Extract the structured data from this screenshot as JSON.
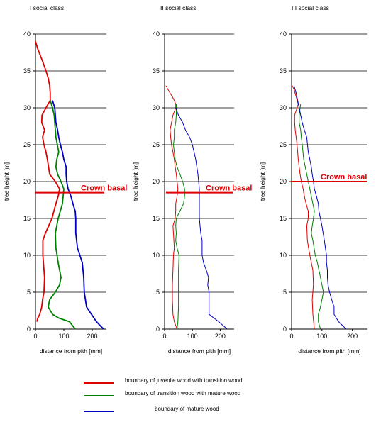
{
  "chart_data": [
    {
      "type": "line",
      "title": "I social class",
      "xlabel": "distance from pith [mm]",
      "ylabel": "tree height [m]",
      "xlim": [
        0,
        250
      ],
      "ylim": [
        0,
        40
      ],
      "xticks": [
        0,
        100,
        200
      ],
      "yticks": [
        0,
        5,
        10,
        15,
        20,
        25,
        30,
        35,
        40
      ],
      "grid": "horizontal",
      "annotation": {
        "text": "Crown basal",
        "y": 18.5
      },
      "series": [
        {
          "name": "boundary of juvenile wood with transition wood",
          "color": "#e00000",
          "points": [
            [
              5,
              1
            ],
            [
              8,
              1.5
            ],
            [
              15,
              2
            ],
            [
              22,
              3
            ],
            [
              25,
              4
            ],
            [
              30,
              5
            ],
            [
              32,
              7
            ],
            [
              26,
              10
            ],
            [
              26,
              12
            ],
            [
              35,
              13
            ],
            [
              58,
              15
            ],
            [
              72,
              17
            ],
            [
              80,
              18
            ],
            [
              85,
              19
            ],
            [
              70,
              20
            ],
            [
              50,
              21
            ],
            [
              42,
              23
            ],
            [
              37,
              24
            ],
            [
              30,
              25
            ],
            [
              25,
              26
            ],
            [
              32,
              27
            ],
            [
              22,
              28
            ],
            [
              23,
              29
            ],
            [
              37,
              30
            ],
            [
              52,
              31
            ],
            [
              52,
              32
            ],
            [
              50,
              33
            ],
            [
              45,
              34
            ],
            [
              37,
              35
            ],
            [
              28,
              36
            ],
            [
              18,
              37
            ],
            [
              8,
              38
            ],
            [
              0,
              39
            ]
          ]
        },
        {
          "name": "boundary of transition wood with mature wood",
          "color": "#008000",
          "points": [
            [
              140,
              0
            ],
            [
              120,
              1
            ],
            [
              82,
              1.5
            ],
            [
              60,
              2
            ],
            [
              45,
              3
            ],
            [
              50,
              4
            ],
            [
              70,
              5
            ],
            [
              85,
              6
            ],
            [
              90,
              7
            ],
            [
              80,
              9
            ],
            [
              72,
              11
            ],
            [
              70,
              13
            ],
            [
              80,
              15
            ],
            [
              95,
              17
            ],
            [
              100,
              19
            ],
            [
              90,
              20
            ],
            [
              78,
              21
            ],
            [
              72,
              22
            ],
            [
              75,
              23
            ],
            [
              82,
              24
            ],
            [
              77,
              25
            ],
            [
              72,
              26
            ],
            [
              70,
              27
            ],
            [
              68,
              28
            ],
            [
              66,
              29
            ],
            [
              60,
              30
            ],
            [
              52,
              31
            ]
          ]
        },
        {
          "name": "boundary of mature wood",
          "color": "#0000c0",
          "points": [
            [
              240,
              0
            ],
            [
              215,
              1
            ],
            [
              180,
              3
            ],
            [
              172,
              5
            ],
            [
              170,
              7
            ],
            [
              165,
              9
            ],
            [
              148,
              11
            ],
            [
              142,
              13
            ],
            [
              142,
              15
            ],
            [
              140,
              16
            ],
            [
              132,
              17
            ],
            [
              125,
              18
            ],
            [
              115,
              19
            ],
            [
              110,
              20
            ],
            [
              108,
              21
            ],
            [
              108,
              22
            ],
            [
              100,
              23
            ],
            [
              95,
              24
            ],
            [
              88,
              25
            ],
            [
              82,
              26
            ],
            [
              78,
              27
            ],
            [
              72,
              28
            ],
            [
              70,
              29
            ],
            [
              68,
              30
            ],
            [
              60,
              31
            ]
          ]
        }
      ]
    },
    {
      "type": "line",
      "title": "II social class",
      "xlabel": "distance from pith [mm]",
      "ylabel": "tree height [m]",
      "xlim": [
        0,
        250
      ],
      "ylim": [
        0,
        40
      ],
      "xticks": [
        0,
        100,
        200
      ],
      "yticks": [
        0,
        5,
        10,
        15,
        20,
        25,
        30,
        35,
        40
      ],
      "grid": "horizontal",
      "annotation": {
        "text": "Crown basal",
        "y": 18.5
      },
      "series": [
        {
          "name": "boundary of juvenile wood with transition wood",
          "color": "#e00000",
          "points": [
            [
              45,
              0
            ],
            [
              35,
              1
            ],
            [
              30,
              2
            ],
            [
              28,
              4
            ],
            [
              28,
              6
            ],
            [
              30,
              8
            ],
            [
              32,
              10
            ],
            [
              35,
              11
            ],
            [
              32,
              13
            ],
            [
              30,
              14
            ],
            [
              38,
              15
            ],
            [
              40,
              16
            ],
            [
              40,
              17
            ],
            [
              45,
              18
            ],
            [
              48,
              19
            ],
            [
              45,
              20
            ],
            [
              42,
              21
            ],
            [
              38,
              22
            ],
            [
              35,
              23
            ],
            [
              30,
              24
            ],
            [
              25,
              25
            ],
            [
              22,
              26
            ],
            [
              20,
              27
            ],
            [
              25,
              28
            ],
            [
              30,
              29
            ],
            [
              35,
              29.5
            ],
            [
              40,
              30
            ],
            [
              40,
              30.5
            ],
            [
              35,
              31
            ],
            [
              28,
              31.5
            ],
            [
              20,
              32
            ],
            [
              12,
              32.5
            ],
            [
              5,
              33
            ]
          ]
        },
        {
          "name": "boundary of transition wood with mature wood",
          "color": "#008000",
          "points": [
            [
              45,
              0
            ],
            [
              48,
              1
            ],
            [
              50,
              3
            ],
            [
              50,
              6
            ],
            [
              50,
              8
            ],
            [
              52,
              10
            ],
            [
              45,
              11
            ],
            [
              40,
              12
            ],
            [
              42,
              13
            ],
            [
              40,
              14
            ],
            [
              42,
              15
            ],
            [
              55,
              16
            ],
            [
              68,
              17
            ],
            [
              72,
              18
            ],
            [
              72,
              19
            ],
            [
              65,
              20
            ],
            [
              55,
              21
            ],
            [
              45,
              22
            ],
            [
              38,
              23
            ],
            [
              35,
              24
            ],
            [
              32,
              25
            ],
            [
              35,
              26
            ],
            [
              35,
              27
            ],
            [
              40,
              28
            ],
            [
              42,
              29
            ],
            [
              42,
              30
            ],
            [
              42,
              30.5
            ]
          ]
        },
        {
          "name": "boundary of mature wood",
          "color": "#0000c0",
          "points": [
            [
              225,
              0
            ],
            [
              195,
              1
            ],
            [
              160,
              2
            ],
            [
              160,
              3
            ],
            [
              160,
              5
            ],
            [
              155,
              6
            ],
            [
              158,
              7
            ],
            [
              150,
              8
            ],
            [
              140,
              9
            ],
            [
              135,
              10
            ],
            [
              135,
              12
            ],
            [
              130,
              13
            ],
            [
              125,
              15
            ],
            [
              125,
              17
            ],
            [
              125,
              19
            ],
            [
              120,
              21
            ],
            [
              112,
              23
            ],
            [
              100,
              25
            ],
            [
              90,
              26
            ],
            [
              75,
              27
            ],
            [
              65,
              28
            ],
            [
              50,
              29
            ],
            [
              45,
              29.5
            ],
            [
              42,
              30
            ]
          ]
        }
      ]
    },
    {
      "type": "line",
      "title": "III social class",
      "xlabel": "distance from pith [mm]",
      "ylabel": "tree height [m]",
      "xlim": [
        0,
        250
      ],
      "ylim": [
        0,
        40
      ],
      "xticks": [
        0,
        100,
        200
      ],
      "yticks": [
        0,
        5,
        10,
        15,
        20,
        25,
        30,
        35,
        40
      ],
      "grid": "horizontal",
      "annotation": {
        "text": "Crown basal",
        "y": 20
      },
      "series": [
        {
          "name": "boundary of juvenile wood with transition wood",
          "color": "#e00000",
          "points": [
            [
              75,
              0
            ],
            [
              70,
              2
            ],
            [
              68,
              4
            ],
            [
              72,
              6
            ],
            [
              70,
              8
            ],
            [
              60,
              10
            ],
            [
              52,
              12
            ],
            [
              50,
              14
            ],
            [
              55,
              15
            ],
            [
              55,
              16
            ],
            [
              48,
              17
            ],
            [
              42,
              18
            ],
            [
              38,
              19
            ],
            [
              32,
              20
            ],
            [
              28,
              21
            ],
            [
              25,
              22
            ],
            [
              22,
              23
            ],
            [
              20,
              24
            ],
            [
              18,
              25
            ],
            [
              15,
              26
            ],
            [
              12,
              27
            ],
            [
              10,
              28
            ],
            [
              10,
              29
            ],
            [
              18,
              30
            ],
            [
              22,
              30.5
            ],
            [
              15,
              31.5
            ],
            [
              8,
              32.5
            ],
            [
              2,
              33
            ]
          ]
        },
        {
          "name": "boundary of transition wood with mature wood",
          "color": "#008000",
          "points": [
            [
              95,
              0
            ],
            [
              88,
              1
            ],
            [
              88,
              2
            ],
            [
              95,
              3
            ],
            [
              100,
              4
            ],
            [
              105,
              5
            ],
            [
              100,
              6
            ],
            [
              95,
              7
            ],
            [
              90,
              8
            ],
            [
              85,
              9
            ],
            [
              78,
              10
            ],
            [
              70,
              12
            ],
            [
              65,
              13
            ],
            [
              68,
              14
            ],
            [
              72,
              15
            ],
            [
              75,
              16
            ],
            [
              70,
              17
            ],
            [
              65,
              18
            ],
            [
              60,
              19
            ],
            [
              55,
              20
            ],
            [
              50,
              21
            ],
            [
              45,
              22
            ],
            [
              40,
              23
            ],
            [
              35,
              25
            ],
            [
              32,
              26
            ],
            [
              30,
              27
            ],
            [
              25,
              28
            ],
            [
              25,
              29
            ],
            [
              28,
              30
            ],
            [
              30,
              30.5
            ]
          ]
        },
        {
          "name": "boundary of mature wood",
          "color": "#0000c0",
          "points": [
            [
              180,
              0
            ],
            [
              155,
              1
            ],
            [
              140,
              2
            ],
            [
              140,
              3
            ],
            [
              132,
              4
            ],
            [
              125,
              5
            ],
            [
              120,
              6
            ],
            [
              118,
              7
            ],
            [
              118,
              8
            ],
            [
              115,
              9
            ],
            [
              115,
              10
            ],
            [
              108,
              12
            ],
            [
              100,
              14
            ],
            [
              95,
              15
            ],
            [
              90,
              16
            ],
            [
              88,
              17
            ],
            [
              82,
              18
            ],
            [
              75,
              19
            ],
            [
              72,
              20
            ],
            [
              68,
              21
            ],
            [
              65,
              22
            ],
            [
              60,
              23
            ],
            [
              55,
              24
            ],
            [
              50,
              26
            ],
            [
              42,
              27
            ],
            [
              35,
              28
            ],
            [
              30,
              29
            ],
            [
              25,
              30
            ],
            [
              20,
              31
            ],
            [
              15,
              32
            ],
            [
              8,
              33
            ]
          ]
        }
      ]
    }
  ],
  "legend": [
    {
      "label": "boundary of juvenile wood with transition wood",
      "color": "#e00000"
    },
    {
      "label": "boundary of transition wood with mature wood",
      "color": "#008000"
    },
    {
      "label": "boundary of mature wood",
      "color": "#0000c0"
    }
  ],
  "annotation_color": "#e00000"
}
